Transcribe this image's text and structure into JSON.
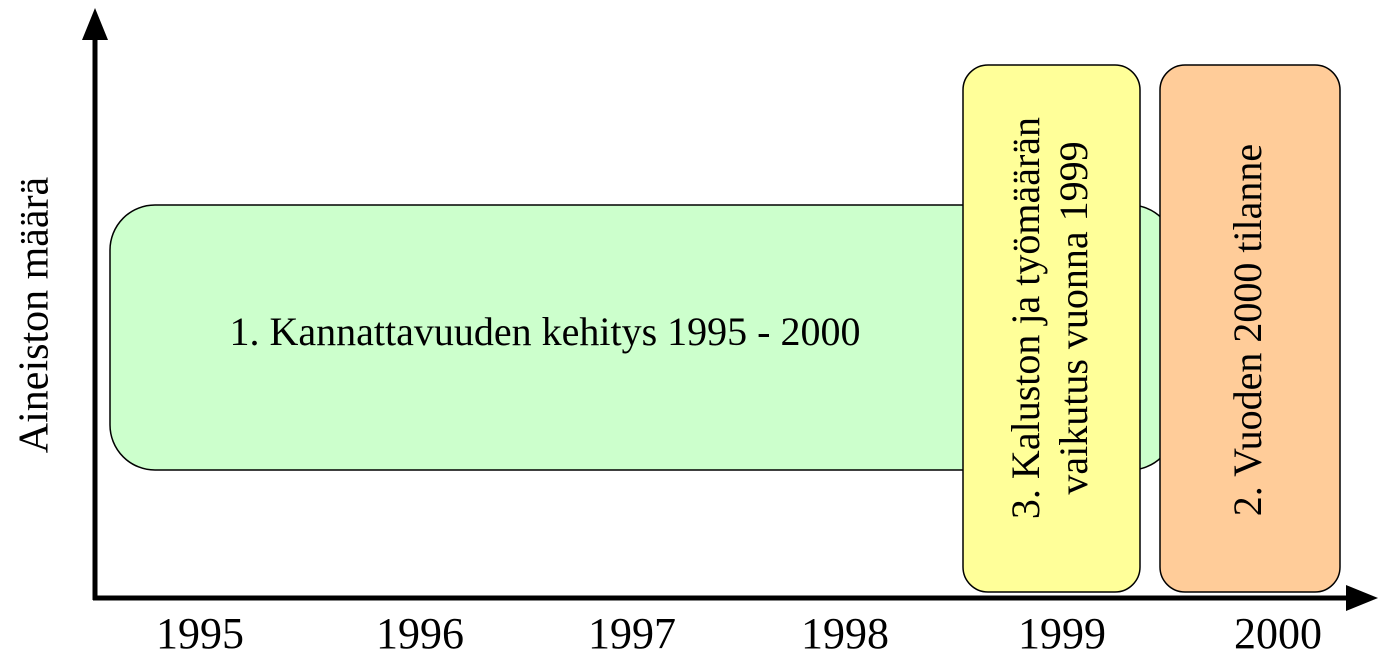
{
  "y_axis": {
    "label": "Aineiston määrä"
  },
  "x_axis": {
    "labels": [
      "1995",
      "1996",
      "1997",
      "1998",
      "1999",
      "2000"
    ]
  },
  "boxes": [
    {
      "lines": [
        "1. Kannattavuuden kehitys 1995 - 2000"
      ]
    },
    {
      "lines": [
        "3. Kaluston ja työmäärän",
        "vaikutus vuonna 1999"
      ]
    },
    {
      "lines": [
        "2. Vuoden 2000 tilanne"
      ]
    }
  ]
}
